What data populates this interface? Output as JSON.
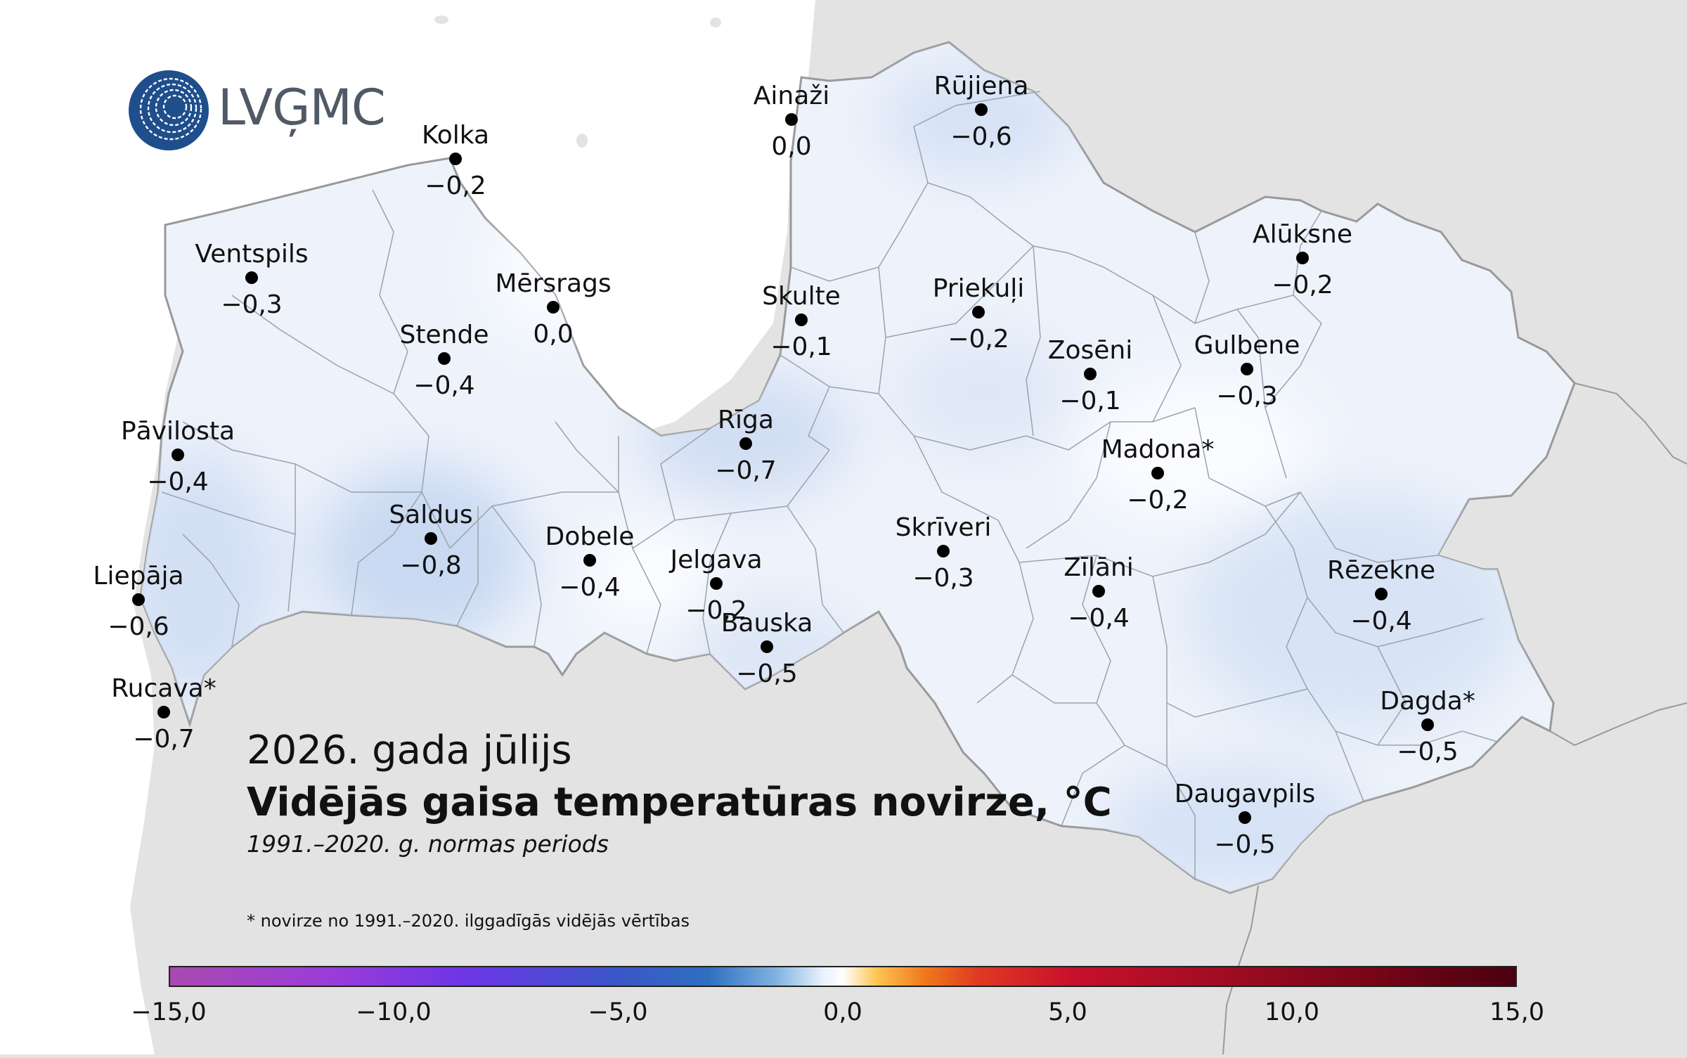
{
  "logo": {
    "text": "LVĢMC",
    "color": "#1f4e8c"
  },
  "caption": {
    "month": "2026. gada jūlijs",
    "title": "Vidējās gaisa temperatūras novirze, °C",
    "period": "1991.–2020. g. normas periods",
    "footnote": "* novirze no 1991.–2020. ilggadīgās vidējās vērtības"
  },
  "colorbar": {
    "ticks": [
      "−15,0",
      "−10,0",
      "−5,0",
      "0,0",
      "5,0",
      "10,0",
      "15,0"
    ],
    "colors": [
      "#a84ab0",
      "#6d35e6",
      "#2f6fbf",
      "#ffffff",
      "#f07a1c",
      "#c8102c",
      "#4a0010"
    ]
  },
  "stations": [
    {
      "name": "Ainaži",
      "value": "0,0"
    },
    {
      "name": "Rūjiena",
      "value": "−0,6"
    },
    {
      "name": "Kolka",
      "value": "−0,2"
    },
    {
      "name": "Ventspils",
      "value": "−0,3"
    },
    {
      "name": "Mērsrags",
      "value": "0,0"
    },
    {
      "name": "Skulte",
      "value": "−0,1"
    },
    {
      "name": "Priekuļi",
      "value": "−0,2"
    },
    {
      "name": "Alūksne",
      "value": "−0,2"
    },
    {
      "name": "Stende",
      "value": "−0,4"
    },
    {
      "name": "Zosēni",
      "value": "−0,1"
    },
    {
      "name": "Gulbene",
      "value": "−0,3"
    },
    {
      "name": "Pāvilosta",
      "value": "−0,4"
    },
    {
      "name": "Rīga",
      "value": "−0,7"
    },
    {
      "name": "Madona*",
      "value": "−0,2"
    },
    {
      "name": "Saldus",
      "value": "−0,8"
    },
    {
      "name": "Dobele",
      "value": "−0,4"
    },
    {
      "name": "Skrīveri",
      "value": "−0,3"
    },
    {
      "name": "Jelgava",
      "value": "−0,2"
    },
    {
      "name": "Zīlāni",
      "value": "−0,4"
    },
    {
      "name": "Rēzekne",
      "value": "−0,4"
    },
    {
      "name": "Liepāja",
      "value": "−0,6"
    },
    {
      "name": "Bauska",
      "value": "−0,5"
    },
    {
      "name": "Rucava*",
      "value": "−0,7"
    },
    {
      "name": "Dagda*",
      "value": "−0,5"
    },
    {
      "name": "Daugavpils",
      "value": "−0,5"
    }
  ]
}
